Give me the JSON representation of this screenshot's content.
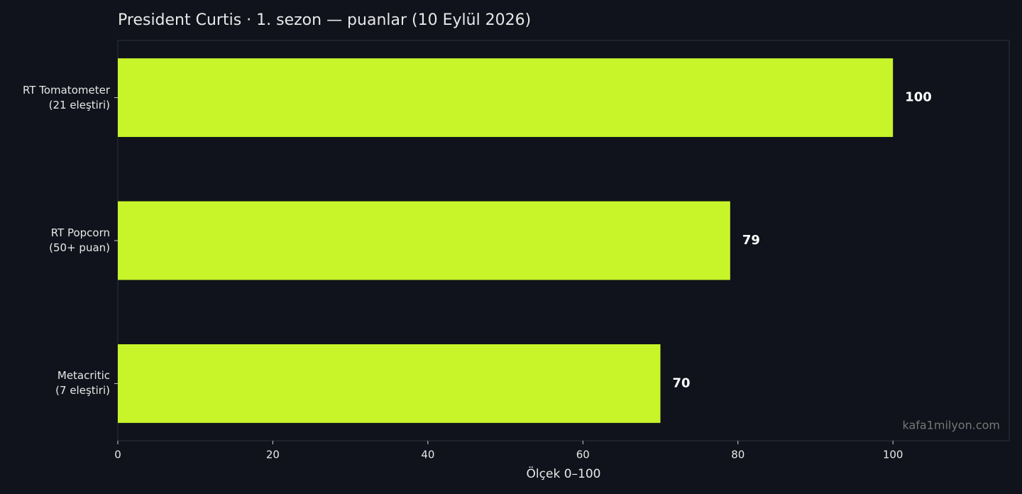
{
  "chart_data": {
    "type": "barh",
    "title": "President Curtis · 1. sezon — puanlar (10 Eylül 2026)",
    "categories": [
      "RT Tomatometer\n(21 eleştiri)",
      "RT Popcorn\n(50+ puan)",
      "Metacritic\n(7 eleştiri)"
    ],
    "values": [
      100,
      79,
      70
    ],
    "color": "#c8f52a",
    "xlim": [
      0,
      115
    ],
    "xticks": [
      0,
      20,
      40,
      60,
      80,
      100
    ],
    "x_label": "Ölçek 0–100",
    "watermark": "kafa1milyon.com"
  }
}
